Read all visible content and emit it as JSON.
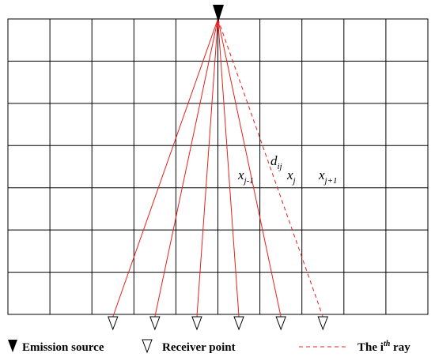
{
  "grid": {
    "columns": 10,
    "rows": 7
  },
  "colors": {
    "grid_line": "#000000",
    "ray": "#e8201c",
    "marker_fill": "#000000",
    "receiver_fill": "#ffffff",
    "text": "#000000"
  },
  "source": {
    "column_boundary": 5,
    "icon": "filled-down-triangle-icon"
  },
  "receivers": {
    "icon": "hollow-down-triangle-icon",
    "column_positions": [
      2.5,
      3.5,
      4.5,
      5.5,
      6.5,
      7.5
    ]
  },
  "rays": {
    "solid_count": 5,
    "dashed_index": 5
  },
  "cell_labels": {
    "x_jm1": {
      "base": "x",
      "sub": "j-1"
    },
    "x_j": {
      "base": "x",
      "sub": "j"
    },
    "x_jp1": {
      "base": "x",
      "sub": "j+1"
    },
    "d_ij": {
      "base": "d",
      "sub": "ij"
    }
  },
  "legend": {
    "emission_source": "Emission source",
    "receiver_point": "Receiver point",
    "ray_prefix": "The i",
    "ray_sup": "th",
    "ray_suffix": " ray"
  }
}
